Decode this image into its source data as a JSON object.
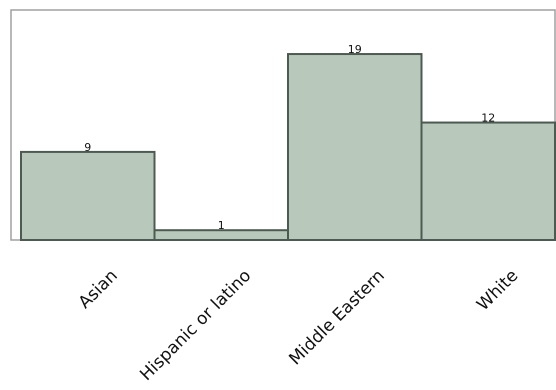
{
  "chart_data": {
    "type": "bar",
    "title": "",
    "xlabel": "",
    "ylabel": "",
    "categories": [
      "Asian",
      "Hispanic or latino",
      "Middle Eastern",
      "White"
    ],
    "values": [
      9,
      1,
      19,
      12
    ],
    "data_labels": [
      "9",
      "1",
      "19",
      "12"
    ],
    "ylim": [
      0,
      23.5
    ],
    "grid": false,
    "legend": "none",
    "colors": {
      "bar_fill": "#b8c9bb",
      "bar_stroke": "#4d5a51",
      "plot_border": "#a0a0a0",
      "axis": "#a0a0a0"
    }
  }
}
